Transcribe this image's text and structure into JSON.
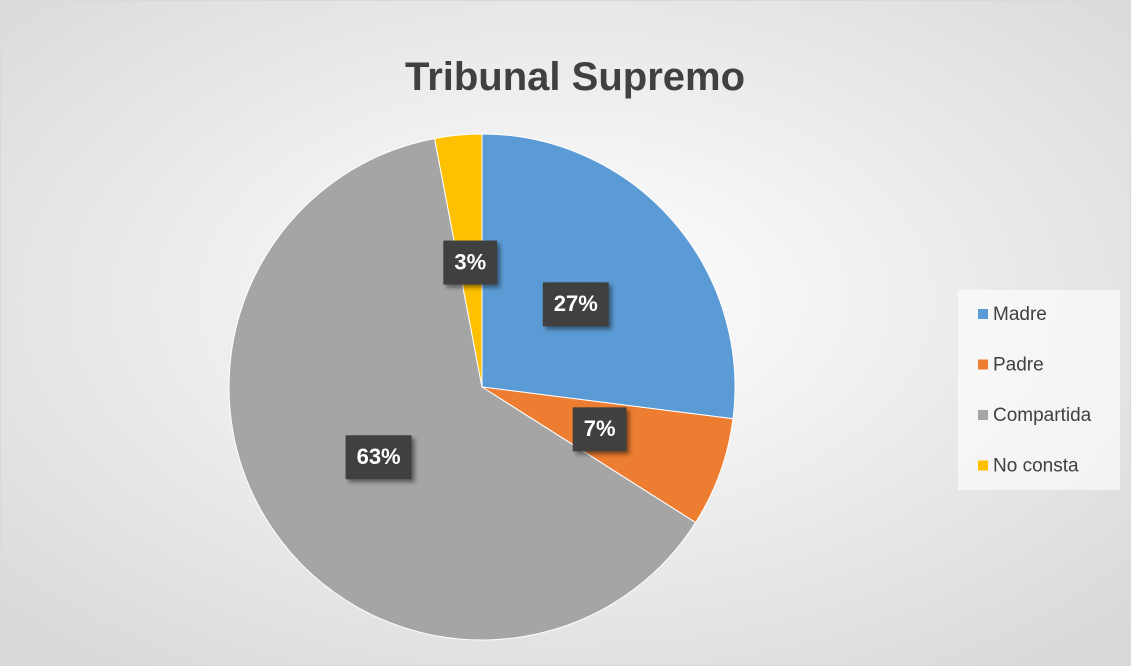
{
  "chart_data": {
    "type": "pie",
    "title": "Tribunal Supremo",
    "categories": [
      "Madre",
      "Padre",
      "Compartida",
      "No consta"
    ],
    "values": [
      27,
      7,
      63,
      3
    ],
    "value_labels": [
      "27%",
      "7%",
      "63%",
      "3%"
    ],
    "colors": [
      "#5b9bd5",
      "#ed7d31",
      "#a5a5a5",
      "#ffc000"
    ],
    "legend": "right"
  }
}
